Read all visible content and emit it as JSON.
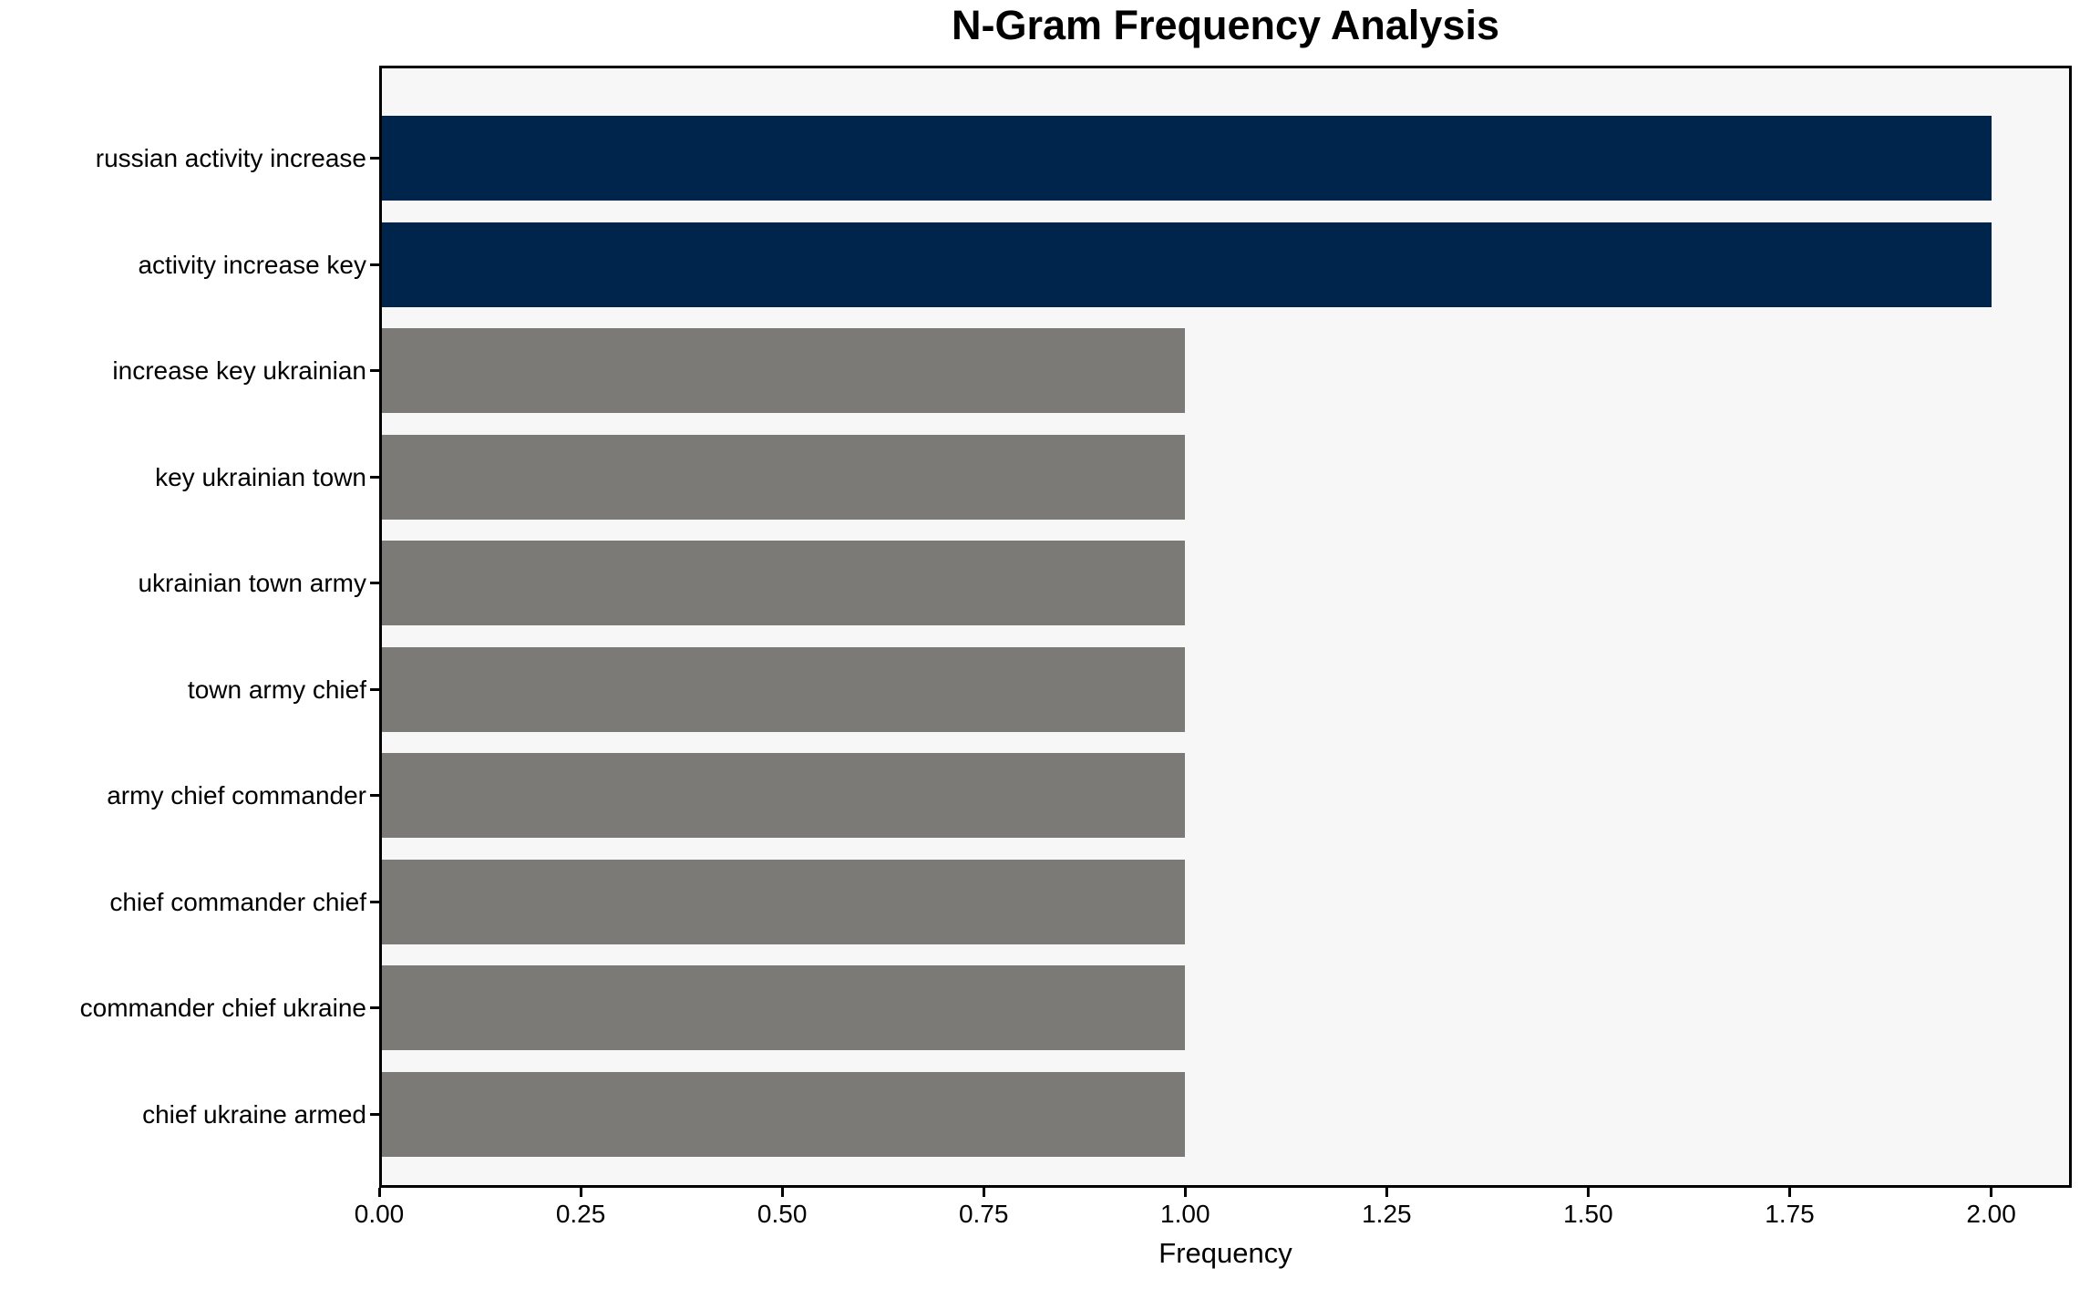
{
  "chart_data": {
    "type": "bar",
    "orientation": "horizontal",
    "title": "N-Gram Frequency Analysis",
    "xlabel": "Frequency",
    "ylabel": "",
    "categories": [
      "russian activity increase",
      "activity increase key",
      "increase key ukrainian",
      "key ukrainian town",
      "ukrainian town army",
      "town army chief",
      "army chief commander",
      "chief commander chief",
      "commander chief ukraine",
      "chief ukraine armed"
    ],
    "values": [
      2,
      2,
      1,
      1,
      1,
      1,
      1,
      1,
      1,
      1
    ],
    "bar_colors": [
      "#00254d",
      "#00254d",
      "#7b7a76",
      "#7b7a76",
      "#7b7a76",
      "#7b7a76",
      "#7b7a76",
      "#7b7a76",
      "#7b7a76",
      "#7b7a76"
    ],
    "xlim": [
      0,
      2.1
    ],
    "x_ticks": [
      {
        "value": 0.0,
        "label": "0.00"
      },
      {
        "value": 0.25,
        "label": "0.25"
      },
      {
        "value": 0.5,
        "label": "0.50"
      },
      {
        "value": 0.75,
        "label": "0.75"
      },
      {
        "value": 1.0,
        "label": "1.00"
      },
      {
        "value": 1.25,
        "label": "1.25"
      },
      {
        "value": 1.5,
        "label": "1.50"
      },
      {
        "value": 1.75,
        "label": "1.75"
      },
      {
        "value": 2.0,
        "label": "2.00"
      }
    ],
    "grid": false,
    "legend": false,
    "colors": {
      "figure_bg": "#ffffff",
      "plot_bg": "#f7f7f7",
      "spine": "#000000",
      "text": "#000000",
      "highlight_bar": "#00254d",
      "default_bar": "#7b7a76"
    }
  }
}
